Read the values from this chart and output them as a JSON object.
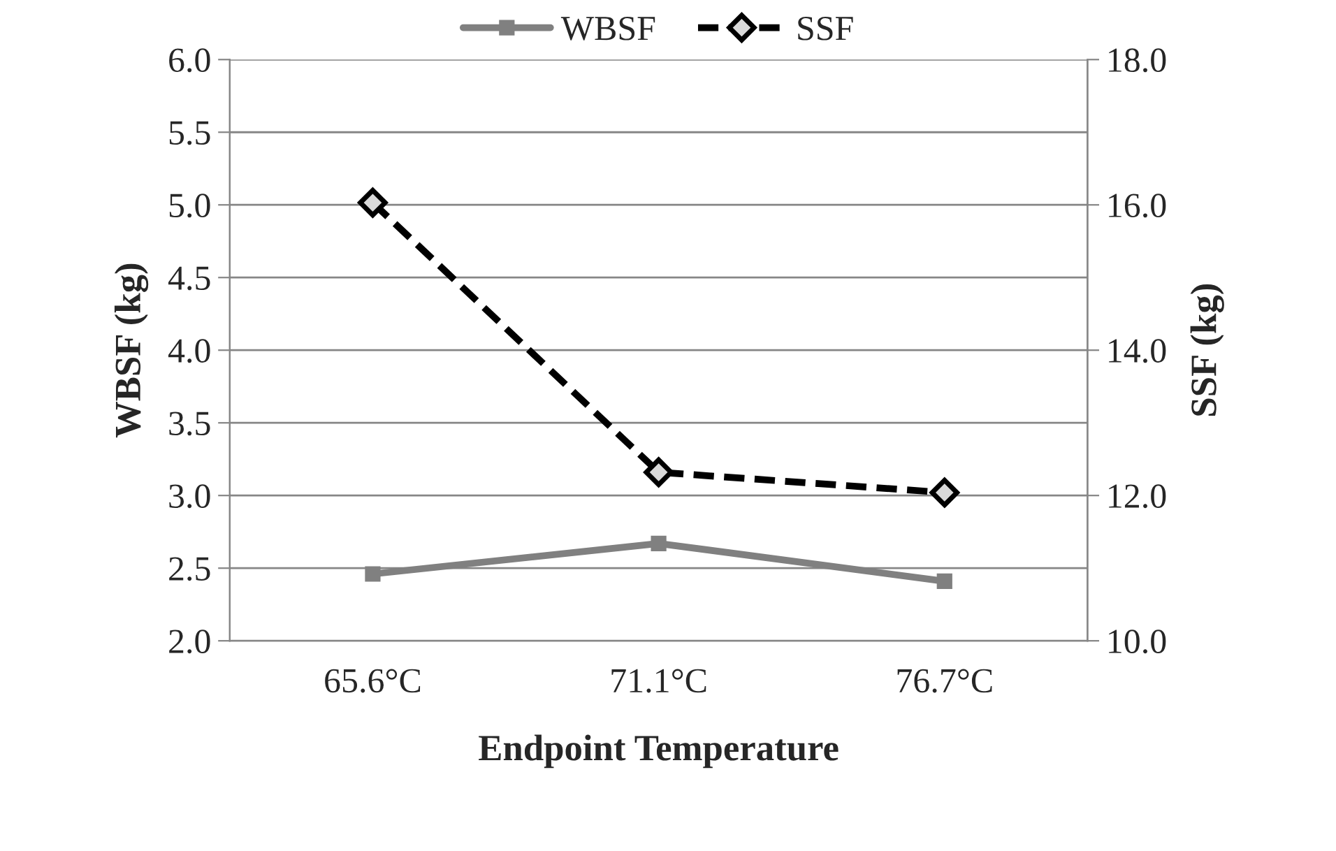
{
  "chart_data": {
    "type": "line",
    "xlabel": "Endpoint Temperature",
    "ylabel": "WBSF (kg)",
    "y2label": "SSF (kg)",
    "categories": [
      "65.6°C",
      "71.1°C",
      "76.7°C"
    ],
    "series": [
      {
        "name": "WBSF",
        "color": "#808080",
        "values": [
          2.46,
          2.67,
          2.41
        ],
        "marker": "square",
        "line_style": "solid"
      },
      {
        "name": "SSF",
        "color": "#000000",
        "values": [
          16.03,
          12.32,
          12.04
        ],
        "marker": "diamond",
        "line_style": "dashed",
        "axis": "y2"
      }
    ],
    "ylim": [
      2.0,
      6.0
    ],
    "yticks": [
      {
        "value": 2.0,
        "label": "2.0"
      },
      {
        "value": 2.5,
        "label": "2.5"
      },
      {
        "value": 3.0,
        "label": "3.0"
      },
      {
        "value": 3.5,
        "label": "3.5"
      },
      {
        "value": 4.0,
        "label": "4.0"
      },
      {
        "value": 4.5,
        "label": "4.5"
      },
      {
        "value": 5.0,
        "label": "5.0"
      },
      {
        "value": 5.5,
        "label": "5.5"
      },
      {
        "value": 6.0,
        "label": "6.0"
      }
    ],
    "y2lim": [
      10.0,
      18.0
    ],
    "y2ticks": [
      {
        "value": 10.0,
        "label": "10.0"
      },
      {
        "value": 12.0,
        "label": "12.0"
      },
      {
        "value": 14.0,
        "label": "14.0"
      },
      {
        "value": 16.0,
        "label": "16.0"
      },
      {
        "value": 18.0,
        "label": "18.0"
      }
    ],
    "grid": "y",
    "legend": "top"
  }
}
